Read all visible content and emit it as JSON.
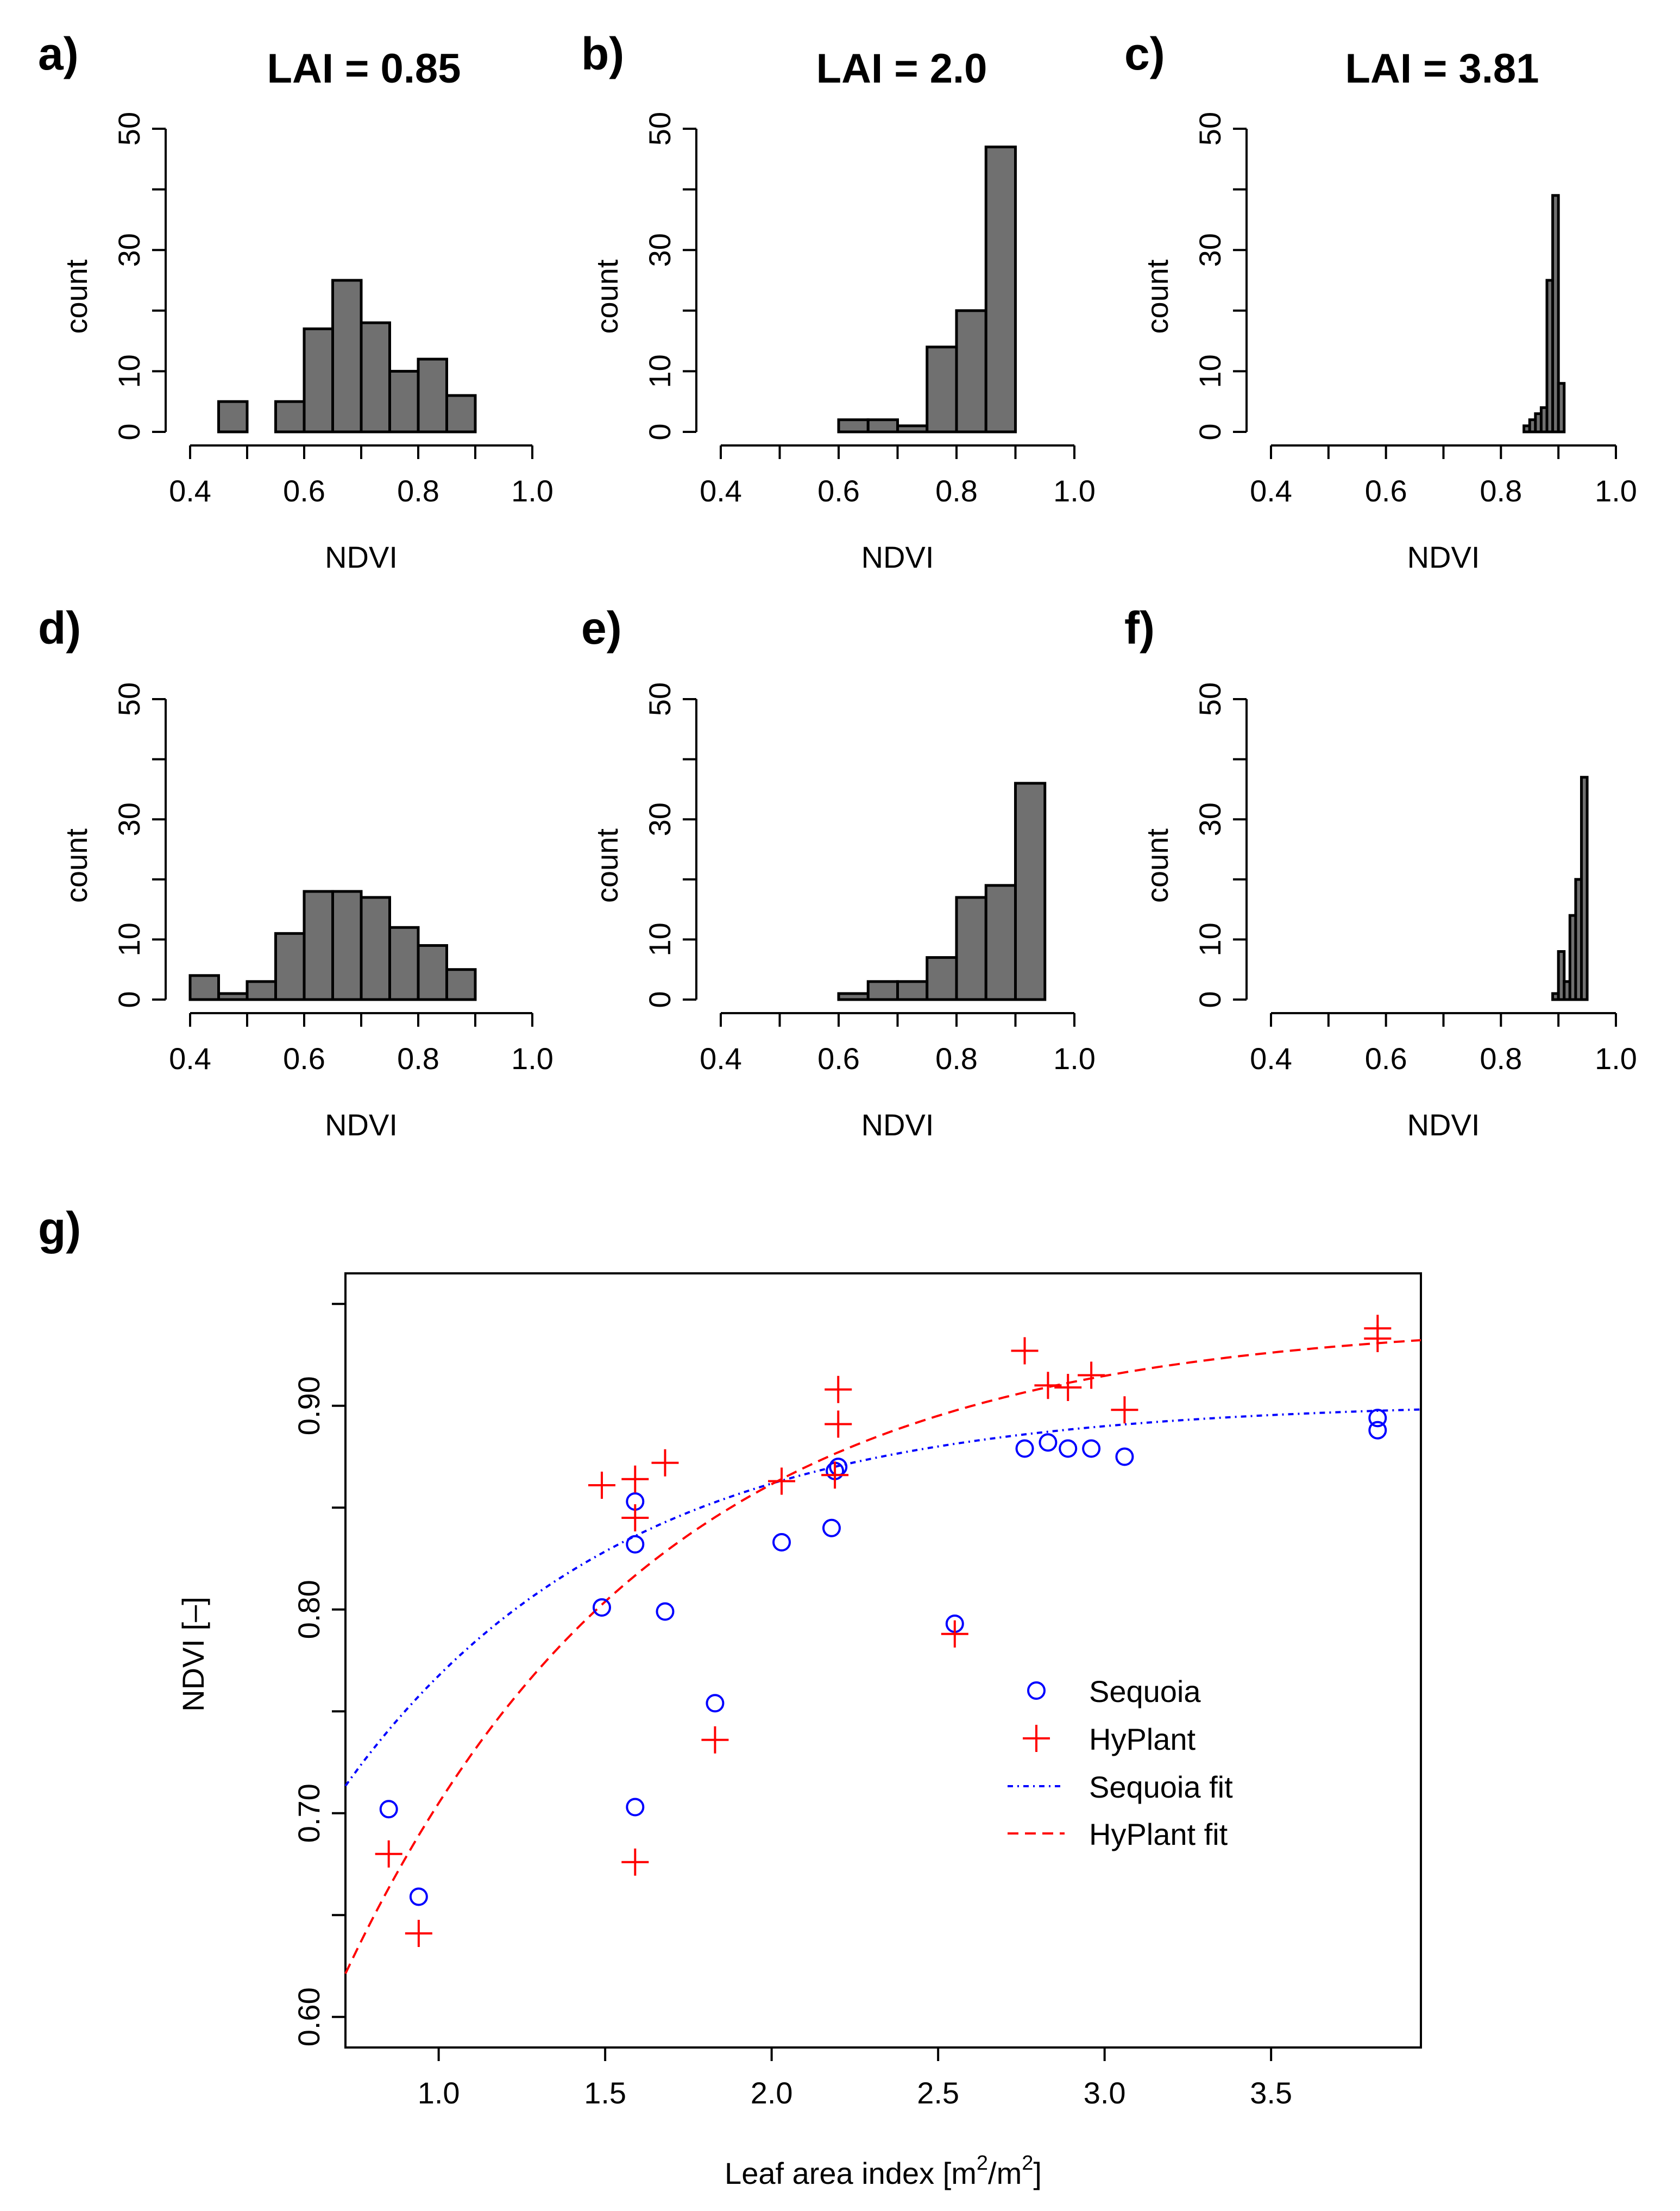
{
  "chart_data": [
    {
      "panel": "a)",
      "type": "bar",
      "title": "LAI = 0.85",
      "xlabel": "NDVI",
      "ylabel": "count",
      "xlim": [
        0.4,
        1.0
      ],
      "ylim": [
        0,
        50
      ],
      "xticks": [
        "0.4",
        "0.6",
        "0.8",
        "1.0"
      ],
      "yticks": [
        "0",
        "10",
        "30",
        "50"
      ],
      "bins": [
        {
          "x0": 0.45,
          "x1": 0.5,
          "count": 5
        },
        {
          "x0": 0.5,
          "x1": 0.55,
          "count": 0
        },
        {
          "x0": 0.55,
          "x1": 0.6,
          "count": 5
        },
        {
          "x0": 0.6,
          "x1": 0.65,
          "count": 17
        },
        {
          "x0": 0.65,
          "x1": 0.7,
          "count": 25
        },
        {
          "x0": 0.7,
          "x1": 0.75,
          "count": 18
        },
        {
          "x0": 0.75,
          "x1": 0.8,
          "count": 10
        },
        {
          "x0": 0.8,
          "x1": 0.85,
          "count": 12
        },
        {
          "x0": 0.85,
          "x1": 0.9,
          "count": 6
        }
      ]
    },
    {
      "panel": "b)",
      "type": "bar",
      "title": "LAI = 2.0",
      "xlabel": "NDVI",
      "ylabel": "count",
      "xlim": [
        0.4,
        1.0
      ],
      "ylim": [
        0,
        50
      ],
      "xticks": [
        "0.4",
        "0.6",
        "0.8",
        "1.0"
      ],
      "yticks": [
        "0",
        "10",
        "30",
        "50"
      ],
      "bins": [
        {
          "x0": 0.6,
          "x1": 0.65,
          "count": 2
        },
        {
          "x0": 0.65,
          "x1": 0.7,
          "count": 2
        },
        {
          "x0": 0.7,
          "x1": 0.75,
          "count": 1
        },
        {
          "x0": 0.75,
          "x1": 0.8,
          "count": 14
        },
        {
          "x0": 0.8,
          "x1": 0.85,
          "count": 20
        },
        {
          "x0": 0.85,
          "x1": 0.9,
          "count": 47
        }
      ]
    },
    {
      "panel": "c)",
      "type": "bar",
      "title": "LAI = 3.81",
      "xlabel": "NDVI",
      "ylabel": "count",
      "xlim": [
        0.4,
        1.0
      ],
      "ylim": [
        0,
        50
      ],
      "xticks": [
        "0.4",
        "0.6",
        "0.8",
        "1.0"
      ],
      "yticks": [
        "0",
        "10",
        "30",
        "50"
      ],
      "bins": [
        {
          "x0": 0.84,
          "x1": 0.85,
          "count": 1
        },
        {
          "x0": 0.85,
          "x1": 0.86,
          "count": 2
        },
        {
          "x0": 0.86,
          "x1": 0.87,
          "count": 3
        },
        {
          "x0": 0.87,
          "x1": 0.88,
          "count": 4
        },
        {
          "x0": 0.88,
          "x1": 0.89,
          "count": 25
        },
        {
          "x0": 0.89,
          "x1": 0.9,
          "count": 39
        },
        {
          "x0": 0.9,
          "x1": 0.91,
          "count": 8
        }
      ]
    },
    {
      "panel": "d)",
      "type": "bar",
      "title": "",
      "xlabel": "NDVI",
      "ylabel": "count",
      "xlim": [
        0.4,
        1.0
      ],
      "ylim": [
        0,
        50
      ],
      "xticks": [
        "0.4",
        "0.6",
        "0.8",
        "1.0"
      ],
      "yticks": [
        "0",
        "10",
        "30",
        "50"
      ],
      "bins": [
        {
          "x0": 0.4,
          "x1": 0.45,
          "count": 4
        },
        {
          "x0": 0.45,
          "x1": 0.5,
          "count": 1
        },
        {
          "x0": 0.5,
          "x1": 0.55,
          "count": 3
        },
        {
          "x0": 0.55,
          "x1": 0.6,
          "count": 11
        },
        {
          "x0": 0.6,
          "x1": 0.65,
          "count": 18
        },
        {
          "x0": 0.65,
          "x1": 0.7,
          "count": 18
        },
        {
          "x0": 0.7,
          "x1": 0.75,
          "count": 17
        },
        {
          "x0": 0.75,
          "x1": 0.8,
          "count": 12
        },
        {
          "x0": 0.8,
          "x1": 0.85,
          "count": 9
        },
        {
          "x0": 0.85,
          "x1": 0.9,
          "count": 5
        }
      ]
    },
    {
      "panel": "e)",
      "type": "bar",
      "title": "",
      "xlabel": "NDVI",
      "ylabel": "count",
      "xlim": [
        0.4,
        1.0
      ],
      "ylim": [
        0,
        50
      ],
      "xticks": [
        "0.4",
        "0.6",
        "0.8",
        "1.0"
      ],
      "yticks": [
        "0",
        "10",
        "30",
        "50"
      ],
      "bins": [
        {
          "x0": 0.6,
          "x1": 0.65,
          "count": 1
        },
        {
          "x0": 0.65,
          "x1": 0.7,
          "count": 3
        },
        {
          "x0": 0.7,
          "x1": 0.75,
          "count": 3
        },
        {
          "x0": 0.75,
          "x1": 0.8,
          "count": 7
        },
        {
          "x0": 0.8,
          "x1": 0.85,
          "count": 17
        },
        {
          "x0": 0.85,
          "x1": 0.9,
          "count": 19
        },
        {
          "x0": 0.9,
          "x1": 0.95,
          "count": 36
        }
      ]
    },
    {
      "panel": "f)",
      "type": "bar",
      "title": "",
      "xlabel": "NDVI",
      "ylabel": "count",
      "xlim": [
        0.4,
        1.0
      ],
      "ylim": [
        0,
        50
      ],
      "xticks": [
        "0.4",
        "0.6",
        "0.8",
        "1.0"
      ],
      "yticks": [
        "0",
        "10",
        "30",
        "50"
      ],
      "bins": [
        {
          "x0": 0.89,
          "x1": 0.9,
          "count": 1
        },
        {
          "x0": 0.9,
          "x1": 0.91,
          "count": 8
        },
        {
          "x0": 0.91,
          "x1": 0.92,
          "count": 3
        },
        {
          "x0": 0.92,
          "x1": 0.93,
          "count": 14
        },
        {
          "x0": 0.93,
          "x1": 0.94,
          "count": 20
        },
        {
          "x0": 0.94,
          "x1": 0.95,
          "count": 37
        }
      ]
    },
    {
      "panel": "g)",
      "type": "scatter",
      "title": "",
      "xlabel": "Leaf area index [m²/m²]",
      "ylabel": "NDVI [–]",
      "xlim": [
        0.72,
        3.95
      ],
      "ylim": [
        0.585,
        0.965
      ],
      "xticks": [
        "1.0",
        "1.5",
        "2.0",
        "2.5",
        "3.0",
        "3.5"
      ],
      "yticks": [
        "0.60",
        "0.70",
        "0.80",
        "0.90"
      ],
      "legend": [
        "Sequoia",
        "HyPlant",
        "Sequoia fit",
        "HyPlant fit"
      ],
      "series": [
        {
          "name": "Sequoia",
          "marker": "circle",
          "color": "#0000ff",
          "points": [
            {
              "x": 0.85,
              "y": 0.702
            },
            {
              "x": 0.94,
              "y": 0.659
            },
            {
              "x": 1.49,
              "y": 0.801
            },
            {
              "x": 1.59,
              "y": 0.853
            },
            {
              "x": 1.59,
              "y": 0.832
            },
            {
              "x": 1.59,
              "y": 0.703
            },
            {
              "x": 1.68,
              "y": 0.799
            },
            {
              "x": 1.83,
              "y": 0.754
            },
            {
              "x": 2.03,
              "y": 0.833
            },
            {
              "x": 2.18,
              "y": 0.84
            },
            {
              "x": 2.19,
              "y": 0.868
            },
            {
              "x": 2.2,
              "y": 0.87
            },
            {
              "x": 2.55,
              "y": 0.793
            },
            {
              "x": 2.76,
              "y": 0.879
            },
            {
              "x": 2.83,
              "y": 0.882
            },
            {
              "x": 2.89,
              "y": 0.879
            },
            {
              "x": 2.96,
              "y": 0.879
            },
            {
              "x": 3.06,
              "y": 0.875
            },
            {
              "x": 3.82,
              "y": 0.894
            },
            {
              "x": 3.82,
              "y": 0.888
            }
          ]
        },
        {
          "name": "HyPlant",
          "marker": "plus",
          "color": "#ff0000",
          "points": [
            {
              "x": 0.85,
              "y": 0.68
            },
            {
              "x": 0.94,
              "y": 0.641
            },
            {
              "x": 1.49,
              "y": 0.861
            },
            {
              "x": 1.59,
              "y": 0.864
            },
            {
              "x": 1.59,
              "y": 0.845
            },
            {
              "x": 1.59,
              "y": 0.676
            },
            {
              "x": 1.68,
              "y": 0.872
            },
            {
              "x": 1.83,
              "y": 0.736
            },
            {
              "x": 2.03,
              "y": 0.863
            },
            {
              "x": 2.19,
              "y": 0.866
            },
            {
              "x": 2.2,
              "y": 0.908
            },
            {
              "x": 2.2,
              "y": 0.891
            },
            {
              "x": 2.55,
              "y": 0.788
            },
            {
              "x": 2.76,
              "y": 0.927
            },
            {
              "x": 2.83,
              "y": 0.91
            },
            {
              "x": 2.89,
              "y": 0.909
            },
            {
              "x": 2.96,
              "y": 0.915
            },
            {
              "x": 3.06,
              "y": 0.898
            },
            {
              "x": 3.82,
              "y": 0.938
            },
            {
              "x": 3.82,
              "y": 0.933
            }
          ]
        }
      ],
      "fits": [
        {
          "name": "Sequoia fit",
          "style": "dashdot",
          "color": "#0000ff",
          "model": "y = a - b*exp(-c*x)",
          "a": 0.902,
          "b": 0.45,
          "c": 1.208
        },
        {
          "name": "HyPlant fit",
          "style": "dashed",
          "color": "#ff0000",
          "model": "y = a - b*exp(-c*x)",
          "a": 0.942,
          "b": 0.698,
          "c": 1.08
        }
      ]
    }
  ],
  "colors": {
    "bar_fill": "#707070",
    "sequoia": "#0000ff",
    "hyplant": "#ff0000"
  }
}
